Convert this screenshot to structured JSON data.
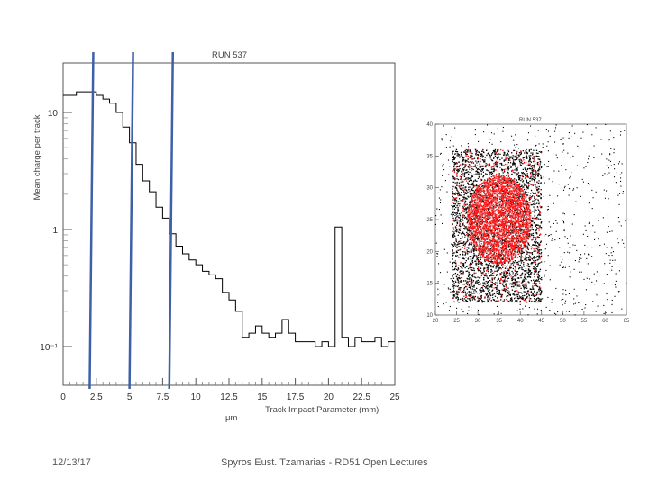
{
  "chart_data": [
    {
      "type": "line",
      "title": "RUN 537",
      "xlabel": "Track Impact Parameter (mm)",
      "ylabel": "Mean charge per track",
      "x_unit_label": "μm",
      "xlim": [
        0,
        25
      ],
      "ylog": true,
      "yticks": [
        {
          "value": 10,
          "label": "10"
        },
        {
          "value": 1,
          "label": "1"
        },
        {
          "value": 0.1,
          "label": "10⁻¹"
        }
      ],
      "xticks": [
        "0",
        "2.5",
        "5",
        "7.5",
        "10",
        "12.5",
        "15",
        "17.5",
        "20",
        "22.5",
        "25"
      ],
      "bin_edges": [
        0.0,
        0.5,
        1.0,
        1.5,
        2.0,
        2.5,
        3.0,
        3.5,
        4.0,
        4.5,
        5.0,
        5.5,
        6.0,
        6.5,
        7.0,
        7.5,
        8.0,
        8.5,
        9.0,
        9.5,
        10.0,
        10.5,
        11.0,
        11.5,
        12.0,
        12.5,
        13.0,
        13.5,
        14.0,
        14.5,
        15.0,
        15.5,
        16.0,
        16.5,
        17.0,
        17.5,
        18.0,
        18.5,
        19.0,
        19.5,
        20.0,
        20.5,
        21.0,
        21.5,
        22.0,
        22.5,
        23.0,
        23.5,
        24.0,
        24.5,
        25.0
      ],
      "values": [
        14,
        14,
        15,
        15,
        15,
        14,
        13,
        12,
        10,
        7.5,
        5.5,
        3.6,
        2.6,
        2.1,
        1.55,
        1.25,
        0.92,
        0.72,
        0.62,
        0.55,
        0.5,
        0.44,
        0.41,
        0.38,
        0.29,
        0.25,
        0.2,
        0.12,
        0.13,
        0.15,
        0.13,
        0.12,
        0.13,
        0.17,
        0.13,
        0.11,
        0.11,
        0.11,
        0.1,
        0.11,
        0.1,
        1.05,
        0.12,
        0.1,
        0.12,
        0.11,
        0.11,
        0.12,
        0.1,
        0.11
      ],
      "vertical_lines_x": [
        2.0,
        5.0,
        8.0
      ]
    },
    {
      "type": "scatter",
      "title": "RUN 537",
      "xlim": [
        20,
        65
      ],
      "ylim": [
        10,
        40
      ],
      "xticks": [
        "20",
        "25",
        "30",
        "35",
        "40",
        "45",
        "50",
        "55",
        "60",
        "65"
      ],
      "yticks": [
        "10",
        "15",
        "20",
        "25",
        "30",
        "35",
        "40"
      ],
      "square_region": {
        "x": [
          24,
          45
        ],
        "y": [
          12,
          36
        ]
      },
      "dense_core": {
        "center": [
          35,
          25
        ],
        "radius": [
          7.5,
          7
        ]
      },
      "colors": {
        "dense": "#ff1a1a",
        "sparse": "#000000"
      }
    }
  ],
  "footer": {
    "date": "12/13/17",
    "credit": "Spyros Eust. Tzamarias - RD51 Open Lectures"
  }
}
